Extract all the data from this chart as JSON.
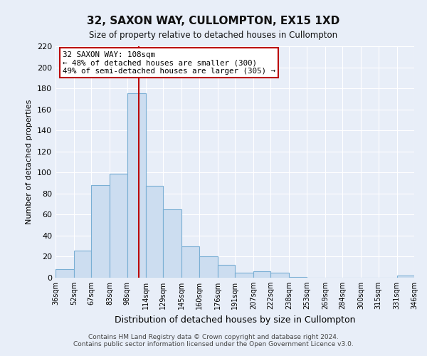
{
  "title": "32, SAXON WAY, CULLOMPTON, EX15 1XD",
  "subtitle": "Size of property relative to detached houses in Cullompton",
  "xlabel": "Distribution of detached houses by size in Cullompton",
  "ylabel": "Number of detached properties",
  "bar_color": "#ccddf0",
  "bar_edge_color": "#7aafd4",
  "background_color": "#e8eef8",
  "grid_color": "#ffffff",
  "bin_edges": [
    36,
    52,
    67,
    83,
    98,
    114,
    129,
    145,
    160,
    176,
    191,
    207,
    222,
    238,
    253,
    269,
    284,
    300,
    315,
    331,
    346
  ],
  "bin_labels": [
    "36sqm",
    "52sqm",
    "67sqm",
    "83sqm",
    "98sqm",
    "114sqm",
    "129sqm",
    "145sqm",
    "160sqm",
    "176sqm",
    "191sqm",
    "207sqm",
    "222sqm",
    "238sqm",
    "253sqm",
    "269sqm",
    "284sqm",
    "300sqm",
    "315sqm",
    "331sqm",
    "346sqm"
  ],
  "bar_heights": [
    8,
    26,
    88,
    99,
    175,
    87,
    65,
    30,
    20,
    12,
    5,
    6,
    5,
    1,
    0,
    0,
    0,
    0,
    0,
    2
  ],
  "property_value": 108,
  "property_line_color": "#bb0000",
  "annotation_text": "32 SAXON WAY: 108sqm\n← 48% of detached houses are smaller (300)\n49% of semi-detached houses are larger (305) →",
  "annotation_box_color": "#ffffff",
  "annotation_box_edge_color": "#bb0000",
  "ylim": [
    0,
    220
  ],
  "yticks": [
    0,
    20,
    40,
    60,
    80,
    100,
    120,
    140,
    160,
    180,
    200,
    220
  ],
  "footnote1": "Contains HM Land Registry data © Crown copyright and database right 2024.",
  "footnote2": "Contains public sector information licensed under the Open Government Licence v3.0."
}
